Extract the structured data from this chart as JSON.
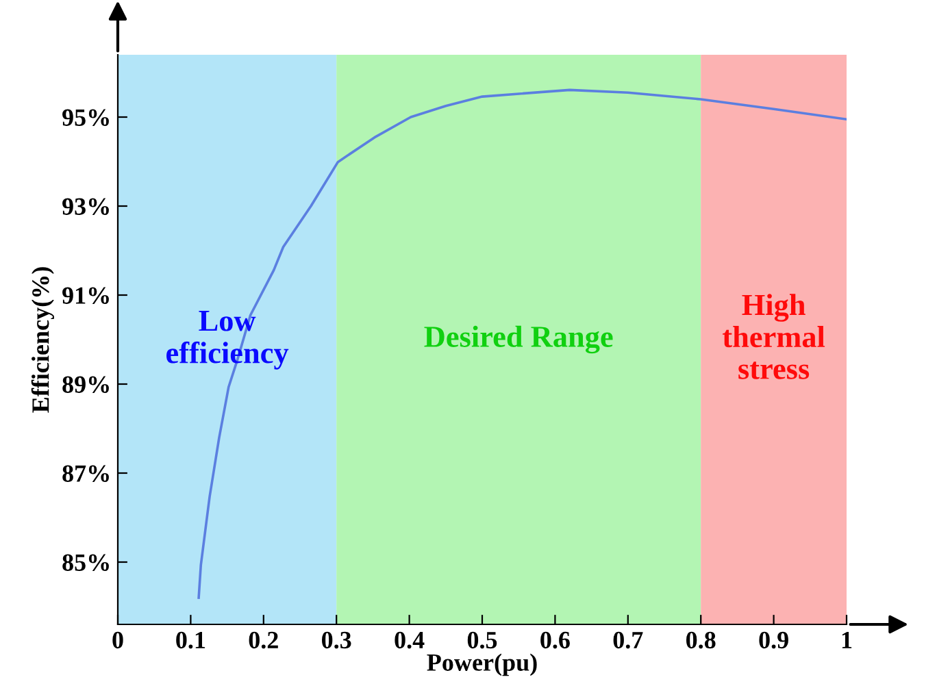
{
  "chart_data": {
    "type": "line",
    "xlabel": "Power(pu)",
    "ylabel": "Efficiency(%)",
    "x": [
      0.111,
      0.114,
      0.126,
      0.139,
      0.152,
      0.164,
      0.182,
      0.214,
      0.227,
      0.265,
      0.302,
      0.352,
      0.402,
      0.45,
      0.5,
      0.62,
      0.7,
      0.8,
      0.9,
      1.0
    ],
    "series": [
      {
        "color": "#5b7fe0",
        "values": [
          84.2,
          84.94,
          86.47,
          87.79,
          88.93,
          89.54,
          90.55,
          91.56,
          92.08,
          93.0,
          93.99,
          94.54,
          95.0,
          95.25,
          95.46,
          95.61,
          95.55,
          95.4,
          95.18,
          94.95
        ]
      }
    ],
    "xlim": [
      0,
      1
    ],
    "ylim": [
      83.6,
      96.4
    ],
    "xticks": [
      {
        "value": 0,
        "label": "0"
      },
      0.1,
      0.2,
      0.3,
      0.4,
      0.5,
      0.6,
      0.7,
      0.8,
      0.9,
      {
        "value": 1,
        "label": "1"
      }
    ],
    "yticks": [
      {
        "value": 85,
        "label": "85%"
      },
      {
        "value": 87,
        "label": "87%"
      },
      {
        "value": 89,
        "label": "89%"
      },
      {
        "value": 91,
        "label": "91%"
      },
      {
        "value": 93,
        "label": "93%"
      },
      {
        "value": 95,
        "label": "95%"
      }
    ],
    "bands": [
      {
        "axis": "x",
        "from": 0,
        "to": 0.3,
        "label": "Low\nefficiency",
        "color": "#b3e5f8"
      },
      {
        "axis": "x",
        "from": 0.3,
        "to": 0.8,
        "label": "Desired Range",
        "color": "#b3f5b3"
      },
      {
        "axis": "x",
        "from": 0.8,
        "to": 1,
        "label": "High\nthermal\nstress",
        "color": "#fcb2b2"
      }
    ],
    "grid": false,
    "marker": "none",
    "line_style": "solid"
  }
}
